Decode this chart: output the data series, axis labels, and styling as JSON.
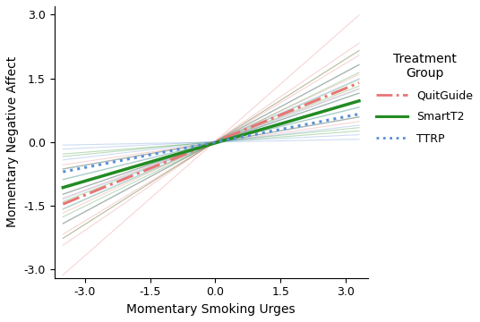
{
  "xlabel": "Momentary Smoking Urges",
  "ylabel": "Momentary Negative Affect",
  "legend_title": "Treatment\nGroup",
  "legend_entries": [
    "QuitGuide",
    "SmartT2",
    "TTRP"
  ],
  "xlim": [
    -3.7,
    3.5
  ],
  "ylim": [
    -3.2,
    3.2
  ],
  "xticks": [
    -3.0,
    -1.5,
    0.0,
    1.5,
    3.0
  ],
  "yticks": [
    -3.0,
    -1.5,
    0.0,
    1.5,
    3.0
  ],
  "mean_lines": [
    {
      "slope": 0.42,
      "intercept": 0.01,
      "color": "#E87575",
      "linestyle": "-.",
      "linewidth": 2.2,
      "label": "QuitGuide"
    },
    {
      "slope": 0.3,
      "intercept": -0.02,
      "color": "#228B22",
      "linestyle": "-",
      "linewidth": 2.5,
      "label": "SmartT2"
    },
    {
      "slope": 0.2,
      "intercept": 0.0,
      "color": "#5B8ED6",
      "linestyle": ":",
      "linewidth": 2.2,
      "label": "TTRP"
    }
  ],
  "individual_lines_quitguide": [
    {
      "slope": 0.55,
      "intercept": 0.0
    },
    {
      "slope": 0.7,
      "intercept": 0.02
    },
    {
      "slope": 0.38,
      "intercept": 0.01
    },
    {
      "slope": 0.3,
      "intercept": -0.01
    },
    {
      "slope": 0.18,
      "intercept": 0.0
    },
    {
      "slope": 0.48,
      "intercept": 0.01
    },
    {
      "slope": 0.62,
      "intercept": 0.0
    },
    {
      "slope": 0.9,
      "intercept": 0.02
    },
    {
      "slope": 0.15,
      "intercept": -0.01
    },
    {
      "slope": 0.65,
      "intercept": 0.01
    },
    {
      "slope": 0.35,
      "intercept": 0.0
    }
  ],
  "individual_lines_smartt2": [
    {
      "slope": 0.4,
      "intercept": 0.0
    },
    {
      "slope": 0.55,
      "intercept": 0.01
    },
    {
      "slope": 0.25,
      "intercept": -0.01
    },
    {
      "slope": 0.18,
      "intercept": 0.0
    },
    {
      "slope": 0.1,
      "intercept": 0.01
    },
    {
      "slope": 0.35,
      "intercept": 0.0
    },
    {
      "slope": 0.5,
      "intercept": -0.01
    },
    {
      "slope": 0.65,
      "intercept": 0.01
    },
    {
      "slope": 0.08,
      "intercept": 0.0
    },
    {
      "slope": 0.45,
      "intercept": -0.01
    }
  ],
  "individual_lines_ttrp": [
    {
      "slope": 0.3,
      "intercept": 0.0
    },
    {
      "slope": 0.45,
      "intercept": 0.01
    },
    {
      "slope": 0.18,
      "intercept": -0.01
    },
    {
      "slope": 0.12,
      "intercept": 0.0
    },
    {
      "slope": 0.05,
      "intercept": 0.01
    },
    {
      "slope": 0.25,
      "intercept": 0.0
    },
    {
      "slope": 0.38,
      "intercept": -0.01
    },
    {
      "slope": 0.55,
      "intercept": 0.01
    },
    {
      "slope": 0.02,
      "intercept": 0.0
    },
    {
      "slope": 0.35,
      "intercept": -0.01
    }
  ],
  "quitguide_color": "#E87575",
  "smartt2_color": "#228B22",
  "ttrp_color": "#5B8ED6",
  "individual_alpha_quitguide": 0.3,
  "individual_alpha_smartt2": 0.3,
  "individual_alpha_ttrp": 0.3,
  "individual_linewidth": 0.8,
  "background_color": "#ffffff",
  "fontsize_axis_label": 10,
  "fontsize_tick": 9,
  "fontsize_legend_title": 10,
  "fontsize_legend": 9,
  "x_plot_start": -3.5,
  "x_plot_end": 3.3
}
